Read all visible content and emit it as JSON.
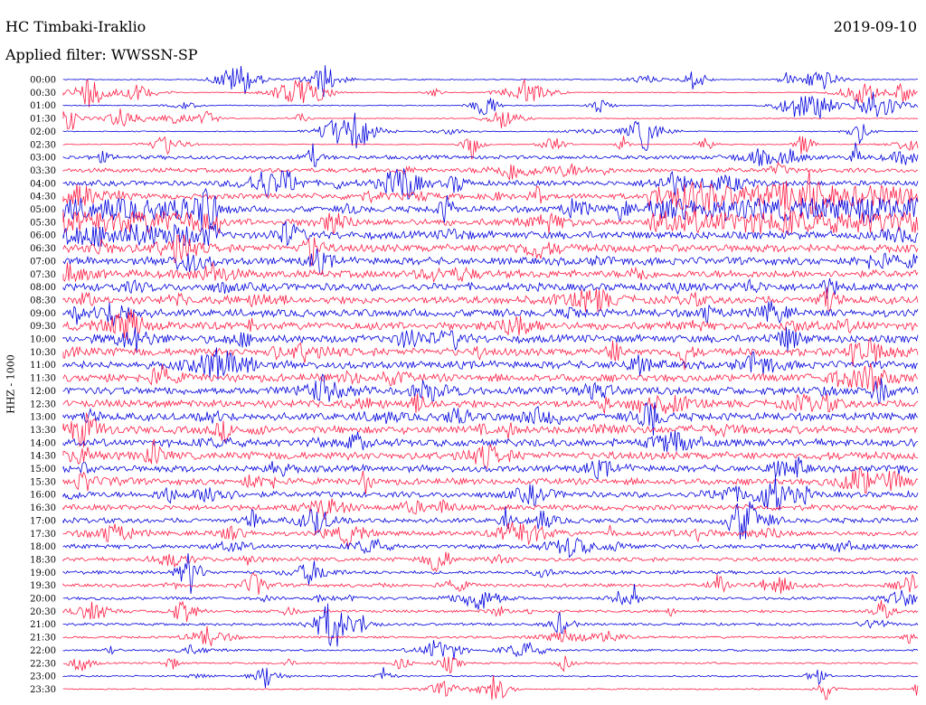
{
  "header": {
    "station": "HC Timbaki-Iraklio",
    "date": "2019-09-10",
    "filter": "Applied filter: WWSSN-SP"
  },
  "colors": {
    "blue": "#0000dd",
    "red": "#ff1e46"
  },
  "chart_data": {
    "type": "line",
    "ylabel": "HHZ - 1000",
    "series_colors": [
      "#0000dd",
      "#ff1e46"
    ],
    "rows": [
      "00:00",
      "00:30",
      "01:00",
      "01:30",
      "02:00",
      "02:30",
      "03:00",
      "03:30",
      "04:00",
      "04:30",
      "05:00",
      "05:30",
      "06:00",
      "06:30",
      "07:00",
      "07:30",
      "08:00",
      "08:30",
      "09:00",
      "09:30",
      "10:00",
      "10:30",
      "11:00",
      "11:30",
      "12:00",
      "12:30",
      "13:00",
      "13:30",
      "14:00",
      "14:30",
      "15:00",
      "15:30",
      "16:00",
      "16:30",
      "17:00",
      "17:30",
      "18:00",
      "18:30",
      "19:00",
      "19:30",
      "20:00",
      "20:30",
      "21:00",
      "21:30",
      "22:00",
      "22:30",
      "23:00",
      "23:30"
    ]
  }
}
